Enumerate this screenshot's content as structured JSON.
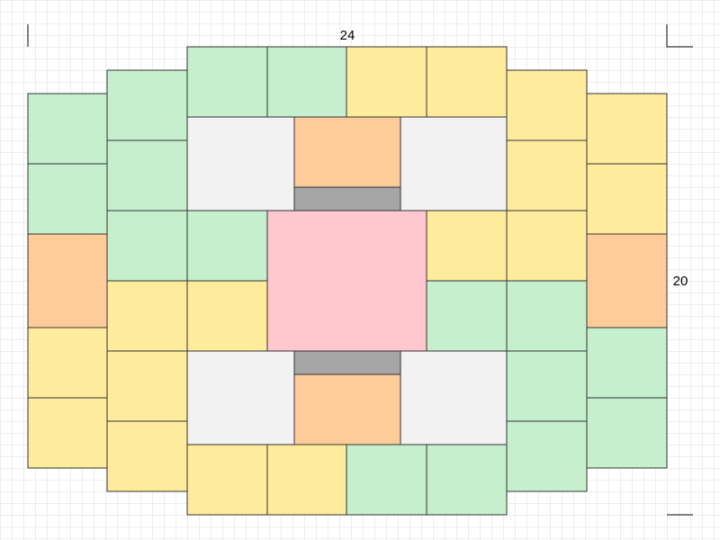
{
  "dimensions": {
    "width": "24",
    "height": "20"
  }
}
